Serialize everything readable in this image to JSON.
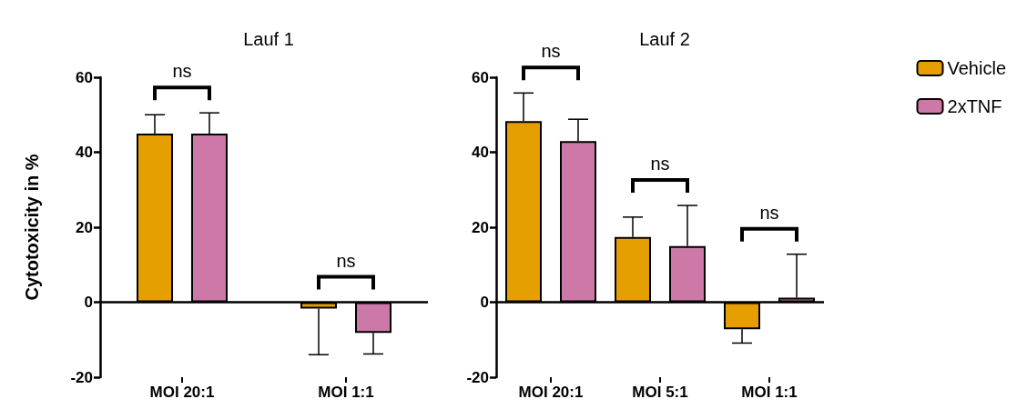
{
  "chart_data": [
    {
      "type": "bar",
      "title": "Lauf 1",
      "ylabel": "Cytotoxicity in %",
      "categories": [
        "MOI 20:1",
        "MOI 1:1"
      ],
      "ylim": [
        -20,
        60
      ],
      "yticks": [
        -20,
        0,
        20,
        40,
        60
      ],
      "grid": false,
      "legend": false,
      "series": [
        {
          "color": "#e69f00",
          "values": [
            45,
            -1.7
          ],
          "errors": [
            [
              45,
              50
            ],
            [
              -14,
              -1.7
            ]
          ]
        },
        {
          "color": "#cc79a7",
          "values": [
            45,
            -8.2
          ],
          "errors": [
            [
              45,
              50.5
            ],
            [
              -13.8,
              -8.2
            ]
          ]
        }
      ],
      "ref_lines": [
        {
          "axis": "y",
          "value": 0,
          "color": "#000000"
        }
      ],
      "annotations": [
        "ns",
        "ns"
      ]
    },
    {
      "type": "bar",
      "title": "Lauf 2",
      "categories": [
        "MOI 20:1",
        "MOI 5:1",
        "MOI 1:1"
      ],
      "ylim": [
        -20,
        60
      ],
      "yticks": [
        -20,
        0,
        20,
        40,
        60
      ],
      "grid": false,
      "legend": "right",
      "series": [
        {
          "name": "Vehicle",
          "color": "#e69f00",
          "values": [
            48.3,
            17.4,
            -7.2
          ],
          "errors": [
            [
              48.3,
              55.8
            ],
            [
              17.4,
              22.7
            ],
            [
              -10.9,
              -7.2
            ]
          ]
        },
        {
          "name": "2xTNF",
          "color": "#cc79a7",
          "values": [
            43,
            15,
            1.2
          ],
          "errors": [
            [
              43,
              48.8
            ],
            [
              15,
              25.8
            ],
            [
              1.2,
              12.8
            ]
          ]
        }
      ],
      "ref_lines": [
        {
          "axis": "y",
          "value": 0,
          "color": "#000000"
        }
      ],
      "annotations": [
        "ns",
        "ns",
        "ns"
      ]
    }
  ]
}
